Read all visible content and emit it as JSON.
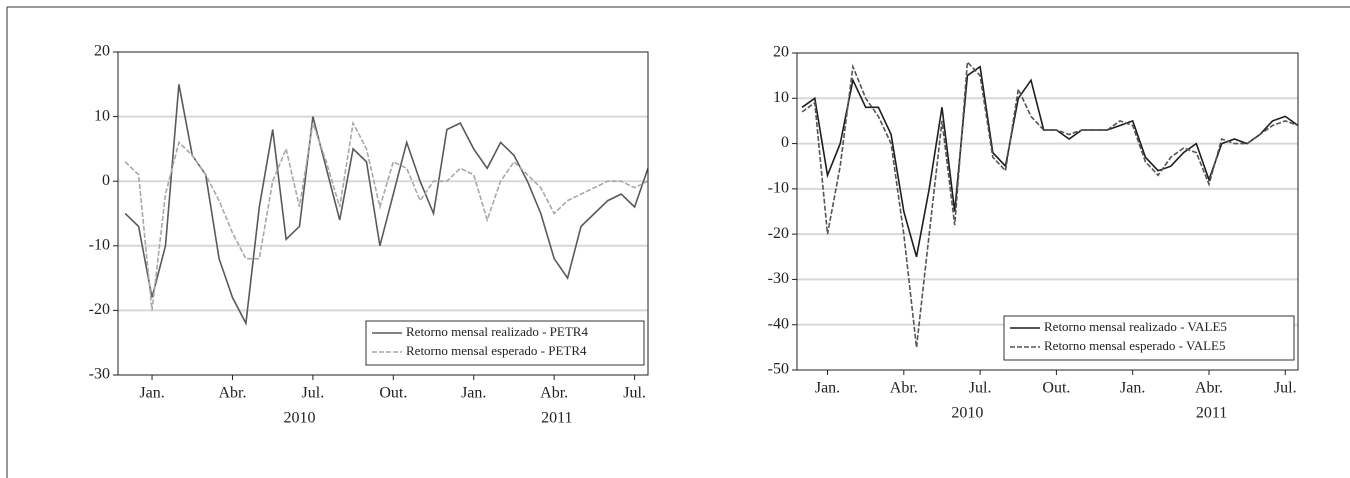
{
  "chart_data": [
    {
      "type": "line",
      "x": [
        -0.5,
        0,
        0.5,
        1,
        1.5,
        2,
        2.5,
        3,
        3.5,
        4,
        4.5,
        5,
        5.5,
        6,
        6.5,
        7,
        7.5,
        8,
        8.5,
        9,
        9.5,
        10,
        10.5,
        11,
        11.5,
        12,
        12.5,
        13,
        13.5,
        14,
        14.5,
        15,
        15.5,
        16,
        16.5,
        17,
        17.5,
        18,
        18.5,
        19
      ],
      "xlim": [
        -0.77,
        19
      ],
      "xticks": [
        {
          "value": 0.5,
          "label": "Jan."
        },
        {
          "value": 3.5,
          "label": "Abr."
        },
        {
          "value": 6.5,
          "label": "Jul."
        },
        {
          "value": 9.5,
          "label": "Out."
        },
        {
          "value": 12.5,
          "label": "Jan."
        },
        {
          "value": 15.5,
          "label": "Abr."
        },
        {
          "value": 18.5,
          "label": "Jul."
        }
      ],
      "xgroups": [
        {
          "value": 6,
          "label": "2010"
        },
        {
          "value": 15.6,
          "label": "2011"
        }
      ],
      "ylim": [
        -30,
        20
      ],
      "yticks": [
        -30,
        -20,
        -10,
        0,
        10,
        20
      ],
      "grid": true,
      "legend": "lower-right",
      "series": [
        {
          "name": "Retorno mensal realizado - PETR4",
          "color": "#5a5a5a",
          "style": "solid",
          "values": [
            -5,
            -7,
            -18,
            -10,
            15,
            4,
            1,
            -12,
            -18,
            -22,
            -4,
            8,
            -9,
            -7,
            10,
            2,
            -6,
            5,
            3,
            -10,
            -2,
            6,
            0,
            -5,
            8,
            9,
            5,
            2,
            6,
            4,
            0,
            -5,
            -12,
            -15,
            -7,
            -5,
            -3,
            -2,
            -4,
            2
          ]
        },
        {
          "name": "Retorno mensal esperado - PETR4",
          "color": "#a8a8a8",
          "style": "dashed",
          "values": [
            3,
            1,
            -20,
            -2,
            6,
            4,
            1,
            -3,
            -8,
            -12,
            -12,
            0,
            5,
            -4,
            9,
            3,
            -4,
            9,
            5,
            -4,
            3,
            2,
            -3,
            0,
            0,
            2,
            1,
            -6,
            0,
            3,
            1,
            -1,
            -5,
            -3,
            -2,
            -1,
            0,
            0,
            -1,
            0
          ]
        }
      ]
    },
    {
      "type": "line",
      "x": [
        -0.5,
        0,
        0.5,
        1,
        1.5,
        2,
        2.5,
        3,
        3.5,
        4,
        4.5,
        5,
        5.5,
        6,
        6.5,
        7,
        7.5,
        8,
        8.5,
        9,
        9.5,
        10,
        10.5,
        11,
        11.5,
        12,
        12.5,
        13,
        13.5,
        14,
        14.5,
        15,
        15.5,
        16,
        16.5,
        17,
        17.5,
        18,
        18.5,
        19
      ],
      "xlim": [
        -0.7,
        19
      ],
      "xticks": [
        {
          "value": 0.5,
          "label": "Jan."
        },
        {
          "value": 3.5,
          "label": "Abr."
        },
        {
          "value": 6.5,
          "label": "Jul."
        },
        {
          "value": 9.5,
          "label": "Out."
        },
        {
          "value": 12.5,
          "label": "Jan."
        },
        {
          "value": 15.5,
          "label": "Abr."
        },
        {
          "value": 18.5,
          "label": "Jul."
        }
      ],
      "xgroups": [
        {
          "value": 6,
          "label": "2010"
        },
        {
          "value": 15.6,
          "label": "2011"
        }
      ],
      "ylim": [
        -50,
        20
      ],
      "yticks": [
        -50,
        -40,
        -30,
        -20,
        -10,
        0,
        10,
        20
      ],
      "grid": true,
      "legend": "lower-right",
      "series": [
        {
          "name": "Retorno mensal realizado - VALE5",
          "color": "#1e1e1e",
          "style": "solid",
          "values": [
            8,
            10,
            -7,
            0,
            14,
            8,
            8,
            2,
            -15,
            -25,
            -10,
            8,
            -15,
            15,
            17,
            -2,
            -5,
            10,
            14,
            3,
            3,
            1,
            3,
            3,
            3,
            4,
            5,
            -3,
            -6,
            -5,
            -2,
            0,
            -8,
            0,
            1,
            0,
            2,
            5,
            6,
            4
          ]
        },
        {
          "name": "Retorno mensal esperado - VALE5",
          "color": "#555555",
          "style": "dashed",
          "values": [
            7,
            9,
            -20,
            -5,
            17,
            10,
            6,
            0,
            -20,
            -45,
            -20,
            5,
            -18,
            18,
            15,
            -3,
            -6,
            12,
            6,
            3,
            3,
            2,
            3,
            3,
            3,
            5,
            4,
            -4,
            -7,
            -3,
            -1,
            -2,
            -9,
            1,
            0,
            0,
            2,
            4,
            5,
            4
          ]
        }
      ]
    }
  ]
}
